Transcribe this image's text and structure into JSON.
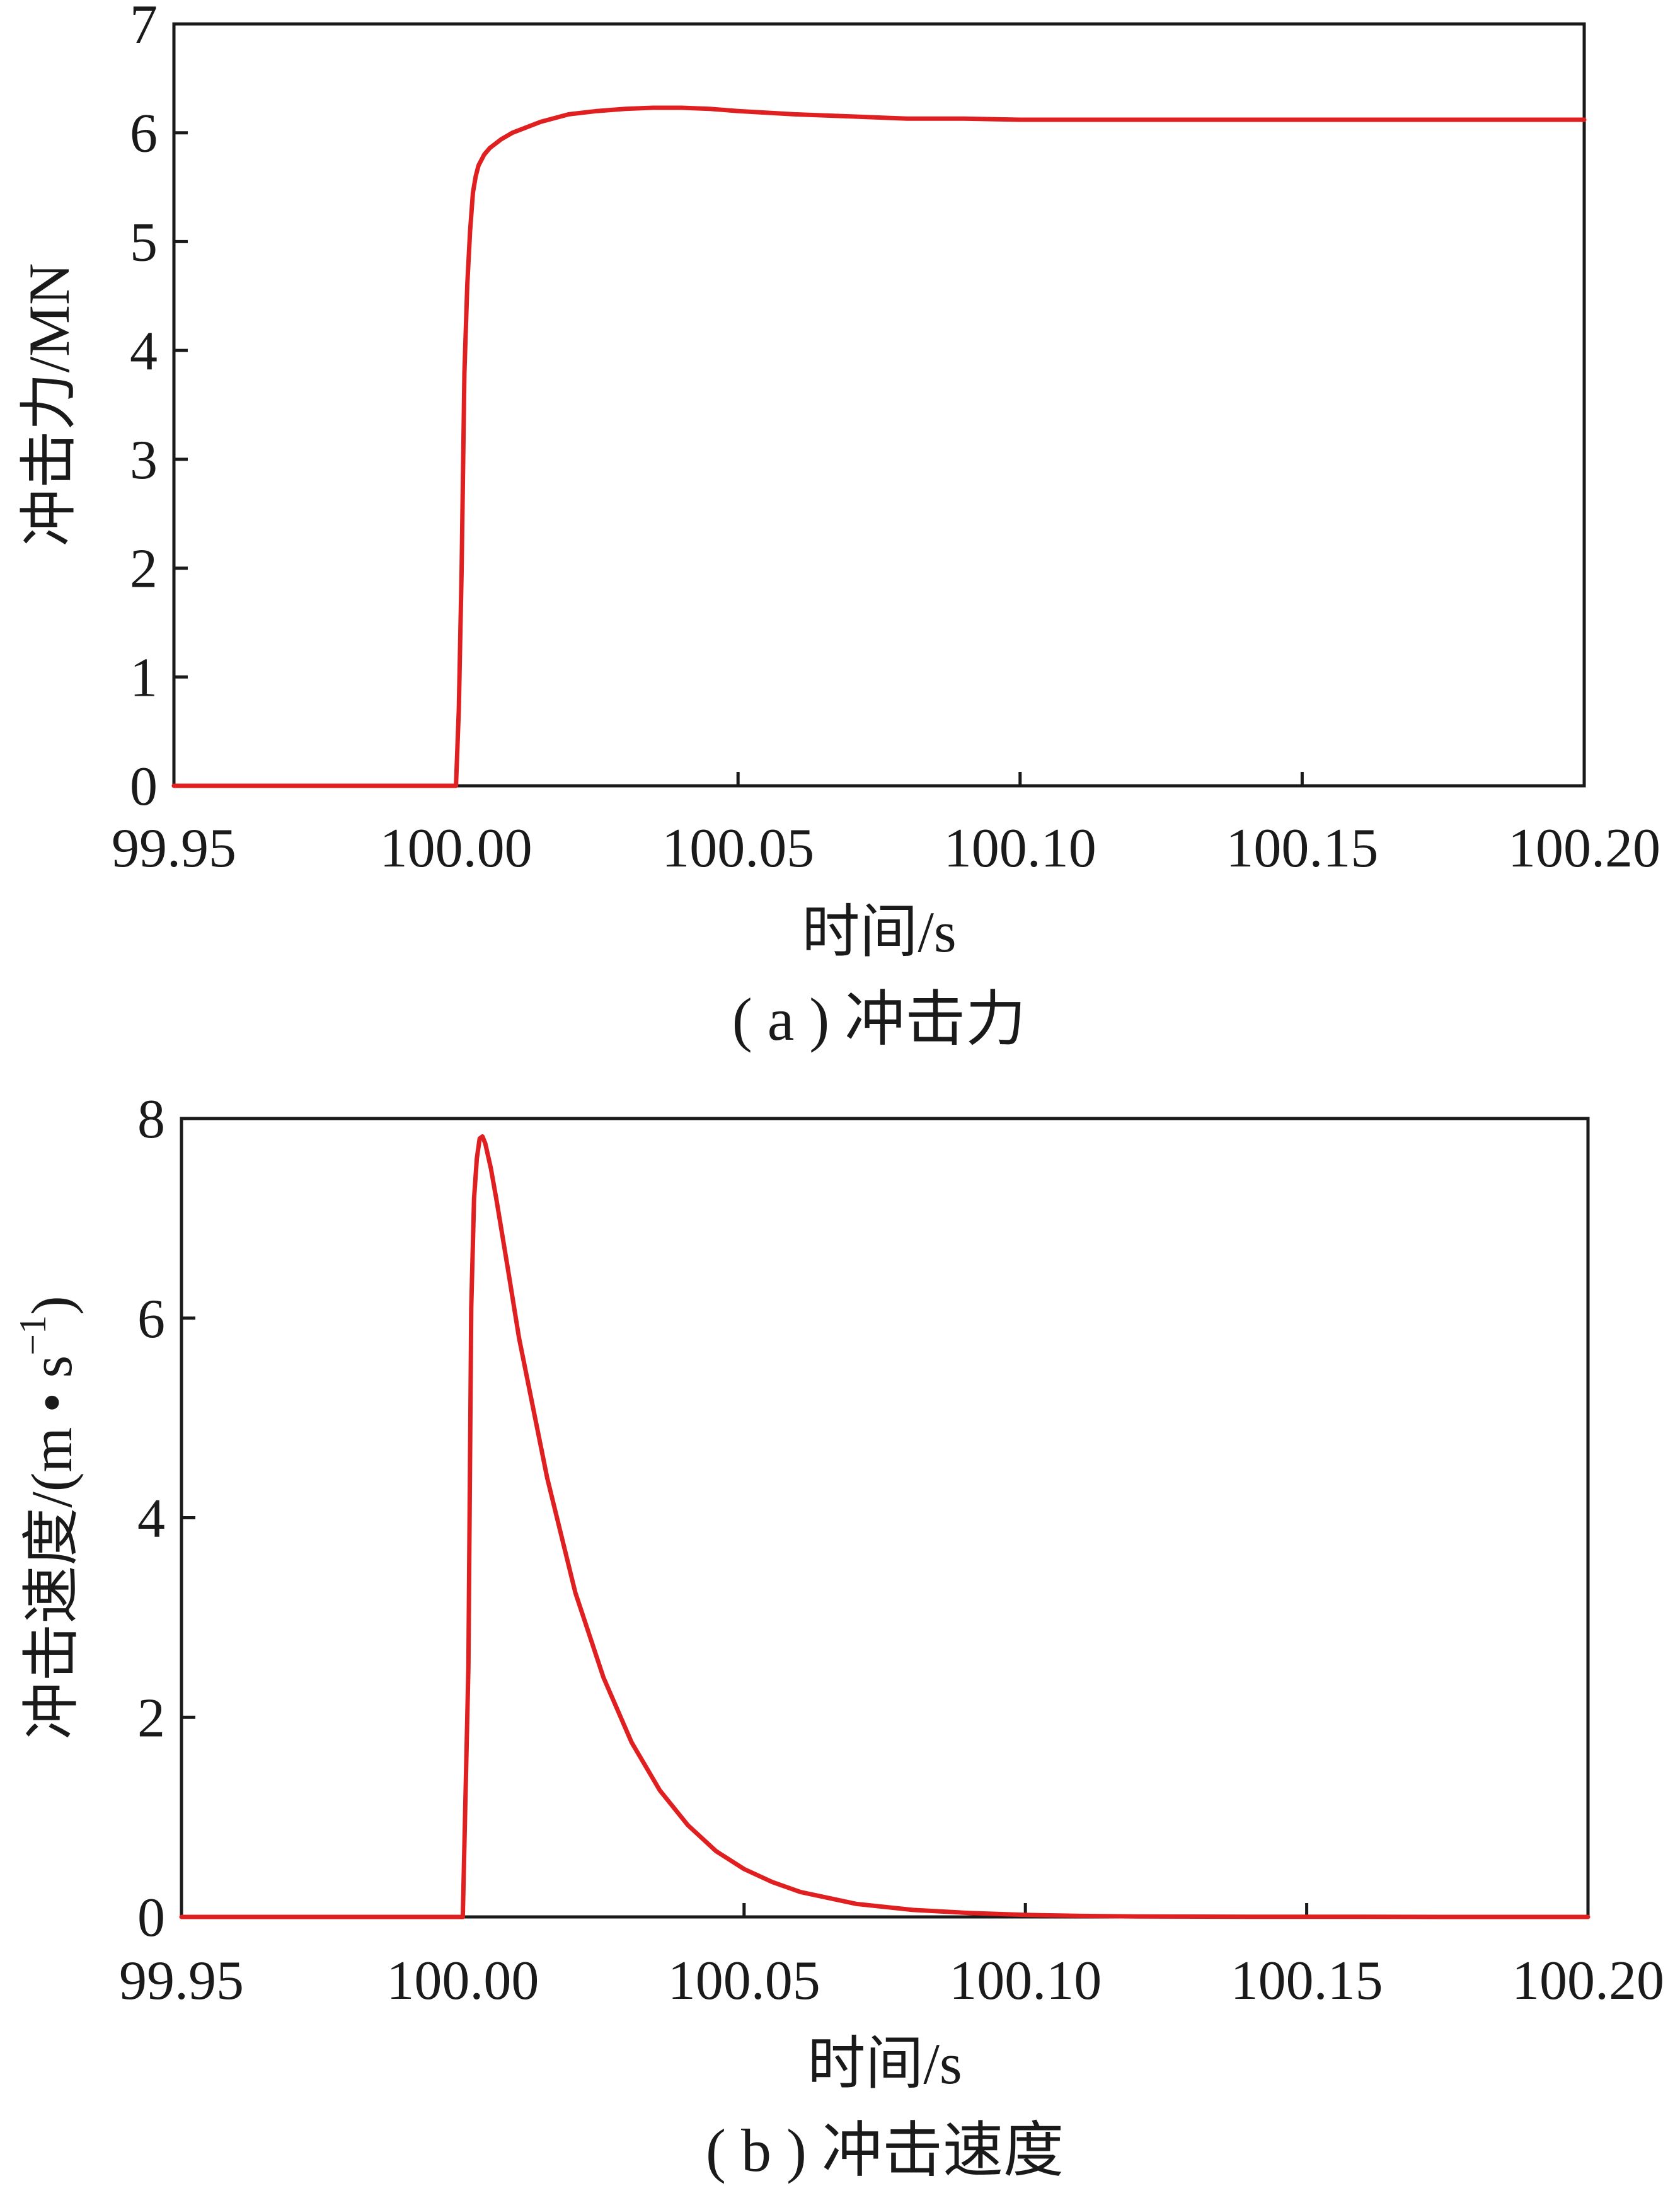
{
  "chart_data": [
    {
      "type": "line",
      "caption": "( a ) 冲击力",
      "xlabel": "时间/s",
      "ylabel": "冲击力/MN",
      "xlim": [
        99.95,
        100.2
      ],
      "ylim": [
        0,
        7
      ],
      "x_ticks": [
        "99.95",
        "100.00",
        "100.05",
        "100.10",
        "100.15",
        "100.20"
      ],
      "y_ticks": [
        "0",
        "1",
        "2",
        "3",
        "4",
        "5",
        "6",
        "7"
      ],
      "grid": false,
      "line_color": "#e02020",
      "series": [
        {
          "x": [
            99.95,
            100.0,
            100.0005,
            100.001,
            100.0015,
            100.002,
            100.0025,
            100.003,
            100.0035,
            100.004,
            100.005,
            100.006,
            100.008,
            100.01,
            100.015,
            100.02,
            100.025,
            100.03,
            100.035,
            100.04,
            100.045,
            100.05,
            100.06,
            100.07,
            100.08,
            100.09,
            100.1,
            100.12,
            100.15,
            100.18,
            100.2
          ],
          "y": [
            0,
            0,
            0.7,
            2.0,
            3.8,
            4.6,
            5.1,
            5.45,
            5.6,
            5.7,
            5.8,
            5.86,
            5.94,
            6.0,
            6.1,
            6.17,
            6.2,
            6.22,
            6.23,
            6.23,
            6.22,
            6.2,
            6.17,
            6.15,
            6.13,
            6.13,
            6.12,
            6.12,
            6.12,
            6.12,
            6.12
          ]
        }
      ]
    },
    {
      "type": "line",
      "caption": "( b ) 冲击速度",
      "xlabel": "时间/s",
      "ylabel_main": "冲击速度/(m • s",
      "ylabel_sup": "−1",
      "ylabel_close": ")",
      "xlim": [
        99.95,
        100.2
      ],
      "ylim": [
        0,
        8
      ],
      "x_ticks": [
        "99.95",
        "100.00",
        "100.05",
        "100.10",
        "100.15",
        "100.20"
      ],
      "y_ticks": [
        "0",
        "2",
        "4",
        "6",
        "8"
      ],
      "grid": false,
      "line_color": "#e02020",
      "series": [
        {
          "x": [
            99.95,
            100.0,
            100.001,
            100.0015,
            100.002,
            100.0025,
            100.003,
            100.0035,
            100.004,
            100.005,
            100.006,
            100.008,
            100.01,
            100.015,
            100.02,
            100.025,
            100.03,
            100.035,
            100.04,
            100.045,
            100.05,
            100.055,
            100.06,
            100.07,
            100.08,
            100.09,
            100.1,
            100.11,
            100.12,
            100.14,
            100.16,
            100.18,
            100.2
          ],
          "y": [
            0,
            0,
            2.5,
            6.1,
            7.2,
            7.6,
            7.8,
            7.82,
            7.75,
            7.5,
            7.18,
            6.5,
            5.8,
            4.4,
            3.25,
            2.4,
            1.75,
            1.27,
            0.92,
            0.66,
            0.48,
            0.35,
            0.25,
            0.13,
            0.07,
            0.04,
            0.02,
            0.01,
            0.005,
            0.002,
            0.001,
            0.0,
            0.0
          ]
        }
      ]
    }
  ]
}
